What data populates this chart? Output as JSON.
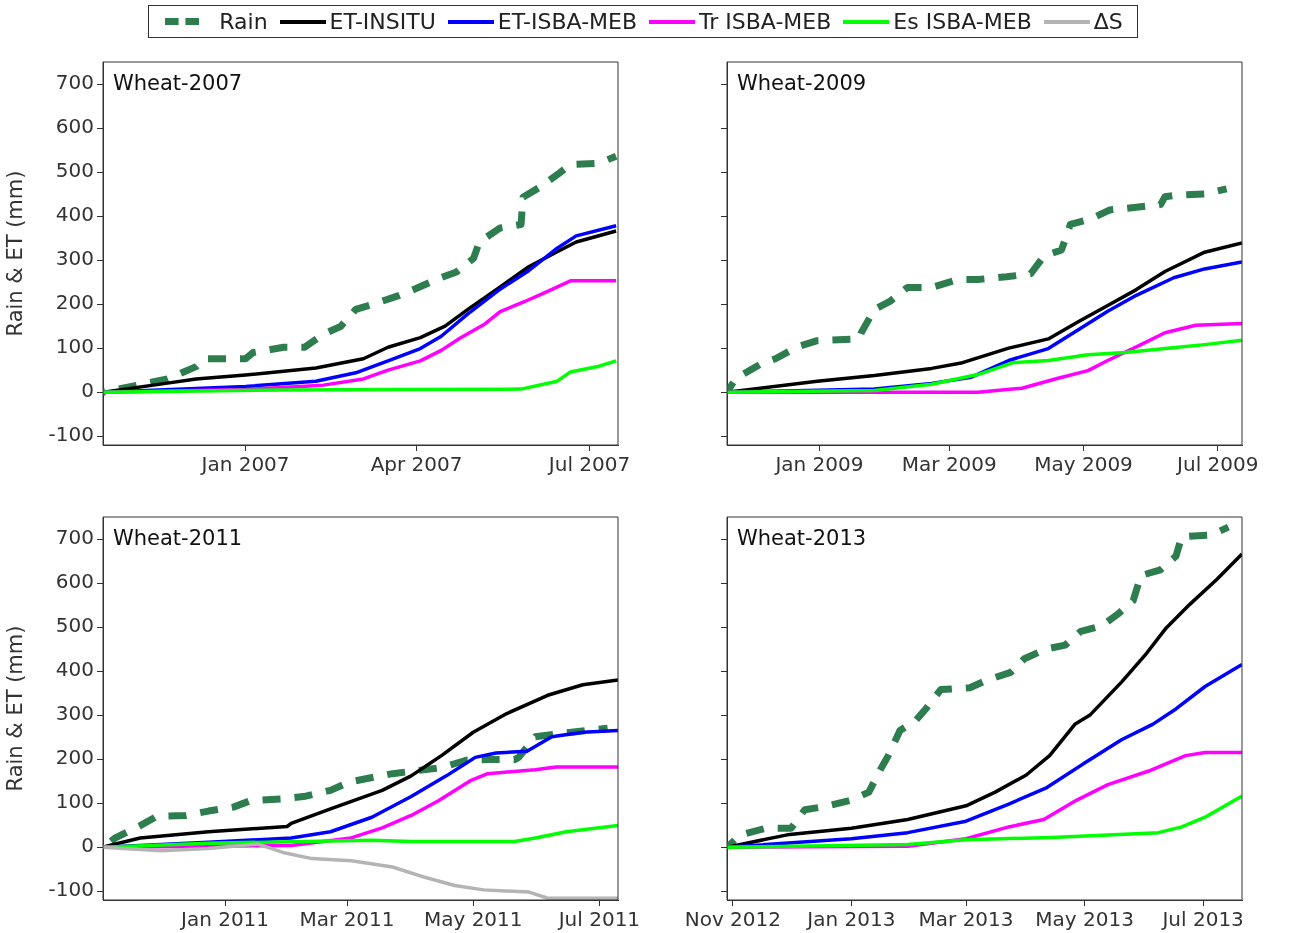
{
  "chart_data": [
    {
      "type": "line",
      "title": "Wheat-2007",
      "ylabel": "Rain & ET (mm)",
      "legend": "top",
      "marker": "none",
      "xlim": [
        "2006-10-18",
        "2007-07-16"
      ],
      "xticks": [
        {
          "value": "2007-01-01",
          "label": "Jan 2007"
        },
        {
          "value": "2007-04-01",
          "label": "Apr 2007"
        },
        {
          "value": "2007-07-01",
          "label": "Jul 2007"
        }
      ],
      "ylim": [
        -120,
        750
      ],
      "yticks": [
        -100,
        0,
        100,
        200,
        300,
        400,
        500,
        600,
        700
      ],
      "series": [
        {
          "name": "Rain",
          "color": "#2e7d4e",
          "line_style": "dashed",
          "x": [
            "2006-10-18",
            "2006-11-21",
            "2006-12-06",
            "2006-12-10",
            "2007-01-01",
            "2007-01-05",
            "2007-01-21",
            "2007-02-01",
            "2007-02-11",
            "2007-02-20",
            "2007-02-28",
            "2007-03-10",
            "2007-03-23",
            "2007-04-01",
            "2007-04-12",
            "2007-04-22",
            "2007-05-01",
            "2007-05-04",
            "2007-05-15",
            "2007-05-26",
            "2007-05-27",
            "2007-06-05",
            "2007-06-14",
            "2007-06-21",
            "2007-07-06",
            "2007-07-15"
          ],
          "values": [
            0,
            30,
            58,
            76,
            76,
            90,
            102,
            102,
            132,
            149,
            188,
            201,
            220,
            236,
            257,
            273,
            304,
            341,
            373,
            381,
            443,
            466,
            494,
            517,
            520,
            536
          ]
        },
        {
          "name": "ET-INSITU",
          "color": "#000000",
          "x": [
            "2006-10-18",
            "2006-11-20",
            "2006-12-06",
            "2007-01-01",
            "2007-02-07",
            "2007-03-04",
            "2007-03-17",
            "2007-04-03",
            "2007-04-16",
            "2007-04-28",
            "2007-05-15",
            "2007-05-30",
            "2007-06-14",
            "2007-06-24",
            "2007-07-15"
          ],
          "values": [
            0,
            20,
            30,
            39,
            55,
            76,
            102,
            124,
            150,
            188,
            239,
            285,
            319,
            341,
            366
          ]
        },
        {
          "name": "ET-ISBA-MEB",
          "color": "#0000ff",
          "x": [
            "2006-10-18",
            "2007-01-01",
            "2007-02-07",
            "2007-02-28",
            "2007-03-17",
            "2007-04-03",
            "2007-04-14",
            "2007-04-28",
            "2007-05-15",
            "2007-05-30",
            "2007-06-14",
            "2007-06-24",
            "2007-07-15"
          ],
          "values": [
            0,
            13,
            25,
            44,
            71,
            99,
            127,
            178,
            234,
            276,
            327,
            355,
            378
          ]
        },
        {
          "name": "Tr ISBA-MEB",
          "color": "#ff00ff",
          "x": [
            "2006-10-18",
            "2007-01-01",
            "2007-02-11",
            "2007-03-04",
            "2007-03-17",
            "2007-04-03",
            "2007-04-14",
            "2007-04-24",
            "2007-05-07",
            "2007-05-15",
            "2007-05-28",
            "2007-06-09",
            "2007-06-21",
            "2007-07-15"
          ],
          "values": [
            0,
            6,
            16,
            30,
            50,
            71,
            95,
            123,
            155,
            183,
            206,
            229,
            253,
            253
          ]
        },
        {
          "name": "Es ISBA-MEB",
          "color": "#00ff00",
          "x": [
            "2006-10-18",
            "2007-01-21",
            "2007-03-24",
            "2007-05-26",
            "2007-06-14",
            "2007-06-21",
            "2007-07-06",
            "2007-07-15"
          ],
          "values": [
            0,
            5,
            6,
            7,
            25,
            46,
            59,
            71
          ]
        }
      ]
    },
    {
      "type": "line",
      "title": "Wheat-2009",
      "marker": "none",
      "tick_labels": "x",
      "xlim": [
        "2008-11-20",
        "2009-07-12"
      ],
      "xticks": [
        {
          "value": "2009-01-01",
          "label": "Jan 2009"
        },
        {
          "value": "2009-03-01",
          "label": "Mar 2009"
        },
        {
          "value": "2009-05-01",
          "label": "May 2009"
        },
        {
          "value": "2009-07-01",
          "label": "Jul 2009"
        }
      ],
      "ylim": [
        -120,
        750
      ],
      "yticks": [
        -100,
        0,
        100,
        200,
        300,
        400,
        500,
        600,
        700
      ],
      "series": [
        {
          "color": "#2e7d4e",
          "line_style": "dashed",
          "x": [
            "2008-11-20",
            "2008-11-24",
            "2008-12-05",
            "2008-12-12",
            "2008-12-22",
            "2008-12-31",
            "2009-01-19",
            "2009-01-20",
            "2009-01-26",
            "2009-02-02",
            "2009-02-10",
            "2009-02-21",
            "2009-03-05",
            "2009-03-14",
            "2009-03-27",
            "2009-04-07",
            "2009-04-13",
            "2009-04-21",
            "2009-04-25",
            "2009-05-04",
            "2009-05-13",
            "2009-05-25",
            "2009-06-05",
            "2009-06-07",
            "2009-06-13",
            "2009-06-25",
            "2009-07-05"
          ],
          "values": [
            0,
            31,
            63,
            76,
            103,
            117,
            121,
            135,
            188,
            206,
            238,
            238,
            256,
            256,
            262,
            269,
            309,
            323,
            381,
            393,
            414,
            420,
            426,
            444,
            448,
            450,
            462
          ]
        },
        {
          "color": "#000000",
          "x": [
            "2008-11-20",
            "2008-12-31",
            "2009-01-26",
            "2009-02-21",
            "2009-03-07",
            "2009-03-28",
            "2009-04-15",
            "2009-04-29",
            "2009-05-12",
            "2009-05-25",
            "2009-06-07",
            "2009-06-25",
            "2009-07-12"
          ],
          "values": [
            0,
            25,
            38,
            54,
            67,
            100,
            121,
            161,
            197,
            233,
            274,
            318,
            339
          ]
        },
        {
          "color": "#0000ff",
          "x": [
            "2008-11-20",
            "2009-01-26",
            "2009-02-21",
            "2009-03-11",
            "2009-03-28",
            "2009-04-15",
            "2009-04-29",
            "2009-05-12",
            "2009-05-25",
            "2009-06-11",
            "2009-06-25",
            "2009-07-12"
          ],
          "values": [
            0,
            7,
            20,
            34,
            72,
            99,
            143,
            184,
            220,
            260,
            280,
            296
          ]
        },
        {
          "color": "#ff00ff",
          "x": [
            "2008-11-20",
            "2009-03-14",
            "2009-04-03",
            "2009-04-19",
            "2009-05-03",
            "2009-05-12",
            "2009-05-25",
            "2009-06-07",
            "2009-06-21",
            "2009-07-12"
          ],
          "values": [
            0,
            0,
            9,
            31,
            49,
            72,
            103,
            135,
            152,
            156
          ]
        },
        {
          "color": "#00ff00",
          "x": [
            "2008-11-20",
            "2009-01-26",
            "2009-02-21",
            "2009-03-14",
            "2009-03-30",
            "2009-04-15",
            "2009-05-03",
            "2009-05-20",
            "2009-06-07",
            "2009-06-25",
            "2009-07-12"
          ],
          "values": [
            0,
            4,
            18,
            40,
            67,
            72,
            85,
            90,
            99,
            108,
            118
          ]
        }
      ]
    },
    {
      "type": "line",
      "title": "Wheat-2011",
      "ylabel": "Rain & ET (mm)",
      "legend": "top",
      "marker": "none",
      "xlim": [
        "2010-11-03",
        "2011-07-10"
      ],
      "xticks": [
        {
          "value": "2011-01-01",
          "label": "Jan 2011"
        },
        {
          "value": "2011-03-01",
          "label": "Mar 2011"
        },
        {
          "value": "2011-05-01",
          "label": "May 2011"
        },
        {
          "value": "2011-07-01",
          "label": "Jul 2011"
        }
      ],
      "ylim": [
        -120,
        750
      ],
      "yticks": [
        -100,
        0,
        100,
        200,
        300,
        400,
        500,
        600,
        700
      ],
      "series": [
        {
          "color": "#2e7d4e",
          "line_style": "dashed",
          "x": [
            "2010-11-03",
            "2010-11-09",
            "2010-11-21",
            "2010-11-29",
            "2010-12-13",
            "2010-12-24",
            "2011-01-05",
            "2011-01-13",
            "2011-01-29",
            "2011-02-08",
            "2011-02-21",
            "2011-03-02",
            "2011-03-15",
            "2011-03-23",
            "2011-04-16",
            "2011-04-28",
            "2011-05-08",
            "2011-05-21",
            "2011-05-23",
            "2011-05-31",
            "2011-06-12",
            "2011-07-05"
          ],
          "values": [
            0,
            21,
            49,
            70,
            72,
            82,
            91,
            105,
            110,
            115,
            129,
            148,
            160,
            167,
            181,
            198,
            199,
            199,
            204,
            251,
            258,
            270
          ]
        },
        {
          "color": "#000000",
          "x": [
            "2010-11-03",
            "2010-11-21",
            "2010-12-24",
            "2011-01-31",
            "2011-02-02",
            "2011-02-21",
            "2011-03-18",
            "2011-04-01",
            "2011-04-16",
            "2011-05-01",
            "2011-05-17",
            "2011-06-06",
            "2011-06-23",
            "2011-07-10"
          ],
          "values": [
            0,
            21,
            35,
            47,
            54,
            87,
            129,
            162,
            209,
            261,
            303,
            345,
            369,
            380
          ]
        },
        {
          "color": "#0000ff",
          "x": [
            "2010-11-03",
            "2010-12-24",
            "2011-02-02",
            "2011-02-21",
            "2011-03-13",
            "2011-04-01",
            "2011-04-18",
            "2011-05-02",
            "2011-05-12",
            "2011-05-27",
            "2011-06-08",
            "2011-06-23",
            "2011-07-10"
          ],
          "values": [
            0,
            11,
            21,
            35,
            68,
            115,
            162,
            204,
            214,
            218,
            251,
            261,
            265
          ]
        },
        {
          "color": "#ff00ff",
          "x": [
            "2010-11-03",
            "2011-02-02",
            "2011-03-03",
            "2011-03-18",
            "2011-04-01",
            "2011-04-14",
            "2011-04-30",
            "2011-05-08",
            "2011-05-31",
            "2011-06-10",
            "2011-07-10"
          ],
          "values": [
            0,
            4,
            21,
            44,
            72,
            105,
            152,
            167,
            176,
            182,
            182
          ]
        },
        {
          "color": "#00ff00",
          "x": [
            "2010-11-03",
            "2010-12-24",
            "2011-02-21",
            "2011-03-13",
            "2011-04-01",
            "2011-05-21",
            "2011-05-31",
            "2011-06-15",
            "2011-07-10"
          ],
          "values": [
            0,
            9,
            14,
            16,
            13,
            13,
            21,
            35,
            49
          ]
        },
        {
          "name": "ΔS",
          "color": "#b4b4b4",
          "x": [
            "2010-11-03",
            "2010-12-01",
            "2010-12-24",
            "2011-01-17",
            "2011-01-29",
            "2011-02-12",
            "2011-03-03",
            "2011-03-23",
            "2011-04-08",
            "2011-04-22",
            "2011-05-06",
            "2011-05-28",
            "2011-06-06",
            "2011-07-10"
          ],
          "values": [
            0,
            -8,
            -3,
            7,
            -12,
            -26,
            -31,
            -45,
            -69,
            -87,
            -97,
            -102,
            -116,
            -116
          ]
        }
      ]
    },
    {
      "type": "line",
      "title": "Wheat-2013",
      "marker": "none",
      "tick_labels": "x",
      "xlim": [
        "2012-10-29",
        "2013-07-21"
      ],
      "xticks": [
        {
          "value": "2012-11-01",
          "label": "Nov 2012"
        },
        {
          "value": "2013-01-01",
          "label": "Jan 2013"
        },
        {
          "value": "2013-03-01",
          "label": "Mar 2013"
        },
        {
          "value": "2013-05-01",
          "label": "May 2013"
        },
        {
          "value": "2013-07-01",
          "label": "Jul 2013"
        }
      ],
      "ylim": [
        -120,
        750
      ],
      "yticks": [
        -100,
        0,
        100,
        200,
        300,
        400,
        500,
        600,
        700
      ],
      "series": [
        {
          "color": "#2e7d4e",
          "line_style": "dashed",
          "x": [
            "2012-10-29",
            "2012-11-05",
            "2012-11-18",
            "2012-12-01",
            "2012-12-08",
            "2012-12-18",
            "2013-01-01",
            "2013-01-10",
            "2013-01-15",
            "2013-01-20",
            "2013-01-26",
            "2013-02-03",
            "2013-02-09",
            "2013-02-16",
            "2013-03-03",
            "2013-03-12",
            "2013-03-24",
            "2013-03-31",
            "2013-04-11",
            "2013-04-21",
            "2013-04-29",
            "2013-05-10",
            "2013-05-18",
            "2013-05-26",
            "2013-05-30",
            "2013-06-09",
            "2013-06-17",
            "2013-06-20",
            "2013-07-05",
            "2013-07-14"
          ],
          "values": [
            0,
            28,
            43,
            43,
            85,
            92,
            107,
            125,
            169,
            208,
            265,
            287,
            318,
            358,
            362,
            380,
            397,
            428,
            450,
            459,
            490,
            503,
            529,
            560,
            617,
            630,
            661,
            705,
            709,
            727
          ]
        },
        {
          "color": "#000000",
          "x": [
            "2012-10-29",
            "2012-11-29",
            "2013-01-01",
            "2013-01-30",
            "2013-03-01",
            "2013-03-16",
            "2013-04-01",
            "2013-04-13",
            "2013-04-26",
            "2013-05-04",
            "2013-05-20",
            "2013-06-02",
            "2013-06-12",
            "2013-06-24",
            "2013-07-08",
            "2013-07-21"
          ],
          "values": [
            0,
            28,
            43,
            63,
            94,
            125,
            164,
            208,
            279,
            301,
            375,
            441,
            498,
            551,
            608,
            666
          ]
        },
        {
          "color": "#0000ff",
          "x": [
            "2012-10-29",
            "2013-01-01",
            "2013-01-30",
            "2013-03-01",
            "2013-03-23",
            "2013-04-11",
            "2013-05-01",
            "2013-05-20",
            "2013-06-05",
            "2013-06-17",
            "2013-07-02",
            "2013-07-21"
          ],
          "values": [
            0,
            19,
            33,
            59,
            98,
            134,
            191,
            244,
            279,
            314,
            365,
            415
          ]
        },
        {
          "color": "#ff00ff",
          "x": [
            "2012-10-29",
            "2013-01-30",
            "2013-03-01",
            "2013-03-23",
            "2013-04-10",
            "2013-04-27",
            "2013-05-13",
            "2013-06-03",
            "2013-06-22",
            "2013-07-02",
            "2013-07-21"
          ],
          "values": [
            0,
            2,
            19,
            46,
            63,
            107,
            142,
            173,
            208,
            215,
            215
          ]
        },
        {
          "color": "#00ff00",
          "x": [
            "2012-10-29",
            "2013-01-30",
            "2013-03-01",
            "2013-04-14",
            "2013-06-08",
            "2013-06-20",
            "2013-07-02",
            "2013-07-21"
          ],
          "values": [
            0,
            6,
            17,
            22,
            33,
            46,
            68,
            116
          ]
        }
      ]
    }
  ]
}
